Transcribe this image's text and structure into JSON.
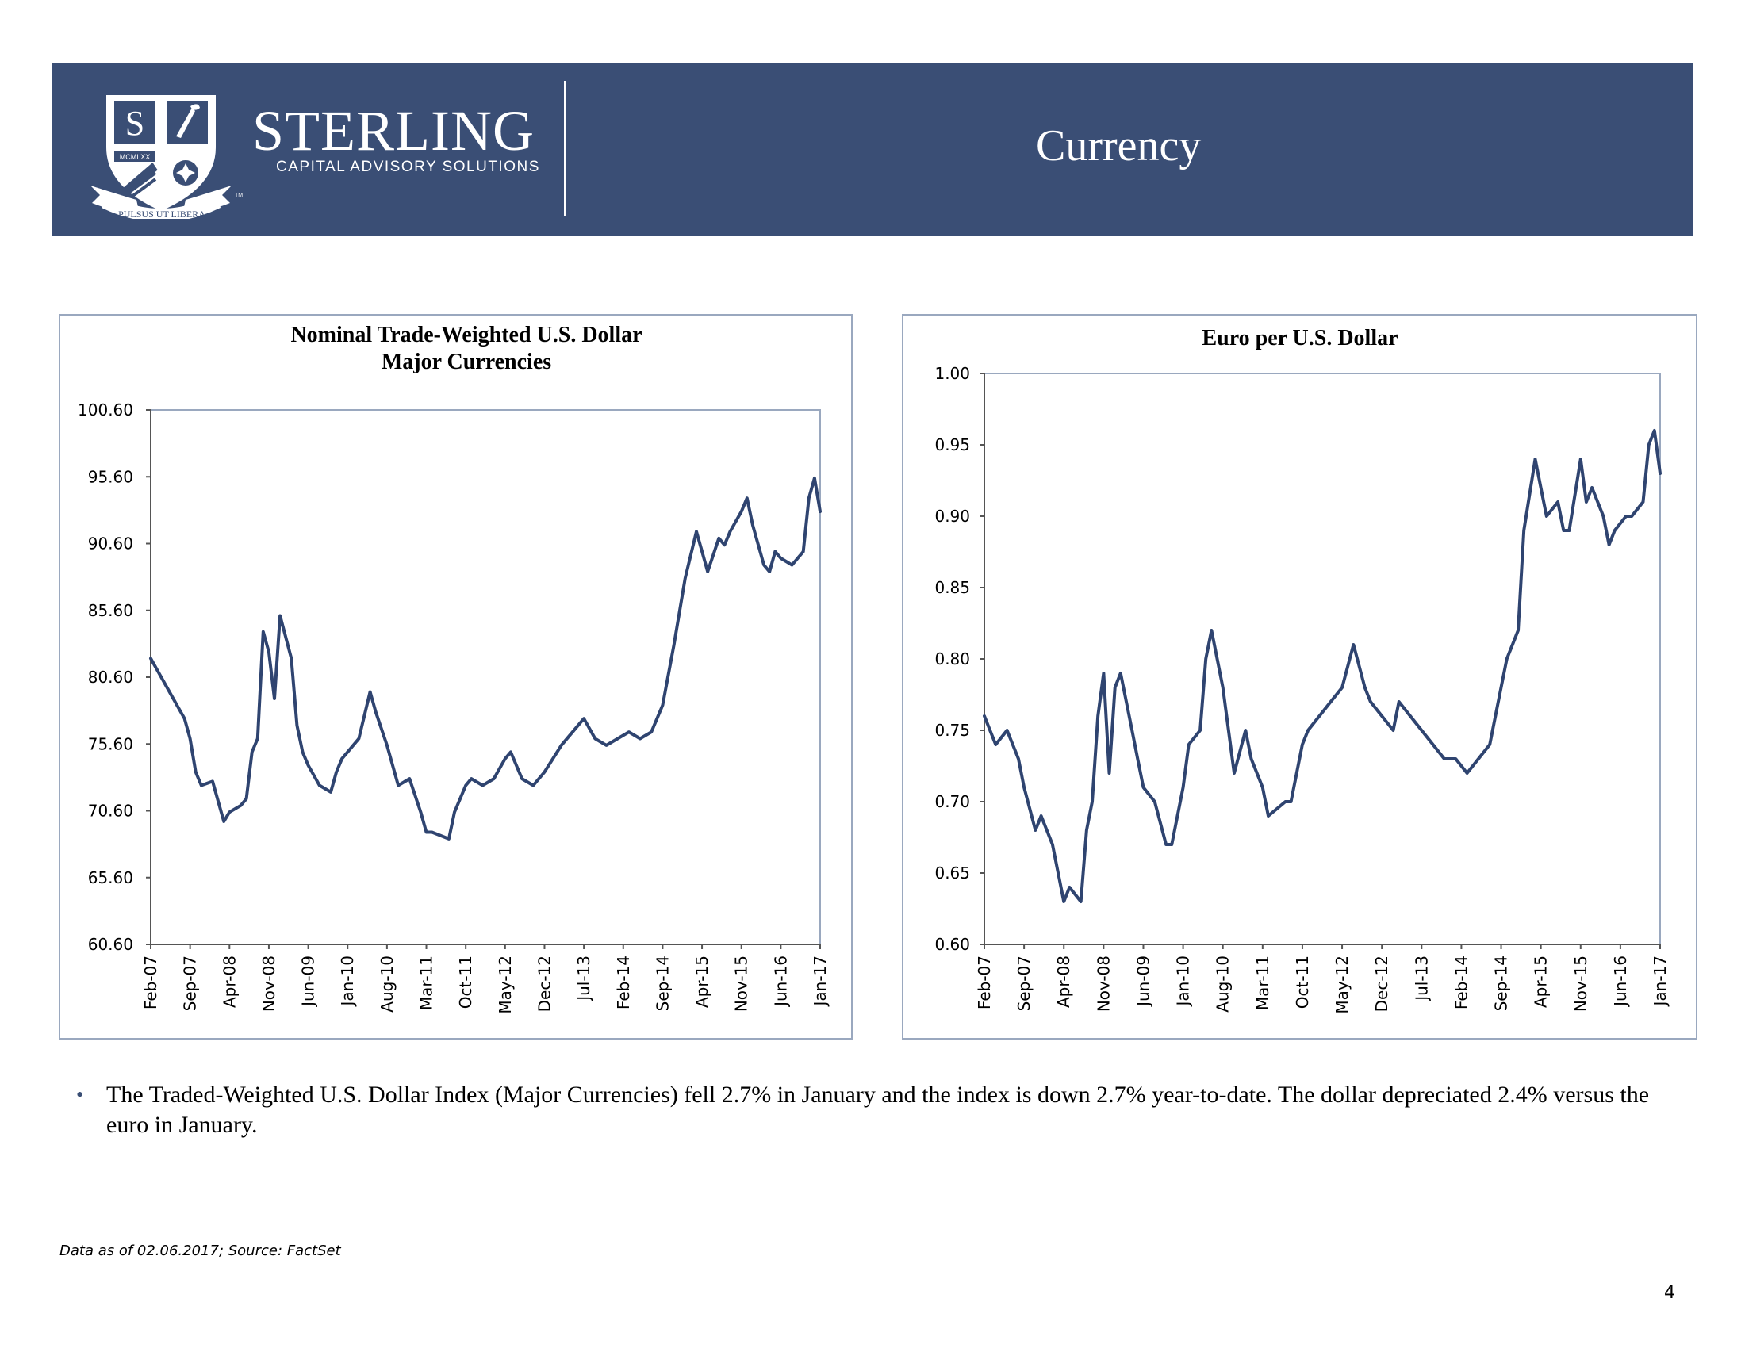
{
  "header": {
    "brand_name": "STERLING",
    "brand_sub": "CAPITAL ADVISORY SOLUTIONS",
    "shield_letter": "S",
    "shield_banner": "MCMLXX",
    "motto": "PULSUS UT LIBERA",
    "trademark": "TM",
    "title": "Currency",
    "colors": {
      "bar": "#3a4e75",
      "text": "#ffffff"
    }
  },
  "chart_data": [
    {
      "type": "line",
      "title": "Nominal Trade-Weighted U.S. Dollar",
      "subtitle": "Major Currencies",
      "ylim": [
        60.6,
        100.6
      ],
      "yticks": [
        "60.60",
        "65.60",
        "70.60",
        "75.60",
        "80.60",
        "85.60",
        "90.60",
        "95.60",
        "100.60"
      ],
      "xticks": [
        "Feb-07",
        "Sep-07",
        "Apr-08",
        "Nov-08",
        "Jun-09",
        "Jan-10",
        "Aug-10",
        "Mar-11",
        "Oct-11",
        "May-12",
        "Dec-12",
        "Jul-13",
        "Feb-14",
        "Sep-14",
        "Apr-15",
        "Nov-15",
        "Jun-16",
        "Jan-17"
      ],
      "series_color": "#2f4470",
      "series": [
        {
          "x": [
            "Feb-07",
            "Apr-07",
            "Jun-07",
            "Aug-07",
            "Sep-07",
            "Oct-07",
            "Nov-07",
            "Jan-08",
            "Mar-08",
            "Apr-08",
            "Jun-08",
            "Jul-08",
            "Aug-08",
            "Sep-08",
            "Oct-08",
            "Nov-08",
            "Dec-08",
            "Jan-09",
            "Mar-09",
            "Apr-09",
            "May-09",
            "Jun-09",
            "Aug-09",
            "Oct-09",
            "Nov-09",
            "Dec-09",
            "Jan-10",
            "Mar-10",
            "May-10",
            "Jun-10",
            "Aug-10",
            "Oct-10",
            "Dec-10",
            "Feb-11",
            "Mar-11",
            "Apr-11",
            "Jul-11",
            "Aug-11",
            "Oct-11",
            "Nov-11",
            "Jan-12",
            "Mar-12",
            "May-12",
            "Jun-12",
            "Aug-12",
            "Oct-12",
            "Dec-12",
            "Mar-13",
            "May-13",
            "Jul-13",
            "Sep-13",
            "Nov-13",
            "Jan-14",
            "Mar-14",
            "May-14",
            "Jul-14",
            "Sep-14",
            "Nov-14",
            "Jan-15",
            "Mar-15",
            "Apr-15",
            "May-15",
            "Jul-15",
            "Aug-15",
            "Sep-15",
            "Nov-15",
            "Dec-15",
            "Jan-16",
            "Mar-16",
            "Apr-16",
            "May-16",
            "Jun-16",
            "Aug-16",
            "Oct-16",
            "Nov-16",
            "Dec-16",
            "Jan-17"
          ],
          "values": [
            82.0,
            80.5,
            79.0,
            77.5,
            76.0,
            73.5,
            72.5,
            72.8,
            69.8,
            70.5,
            71.0,
            71.5,
            75.0,
            76.0,
            84.0,
            82.5,
            79.0,
            85.2,
            82.0,
            77.0,
            75.0,
            74.0,
            72.5,
            72.0,
            73.5,
            74.5,
            75.0,
            76.0,
            79.5,
            78.0,
            75.5,
            72.5,
            73.0,
            70.5,
            69.0,
            69.0,
            68.5,
            70.5,
            72.5,
            73.0,
            72.5,
            73.0,
            74.5,
            75.0,
            73.0,
            72.5,
            73.5,
            75.5,
            76.5,
            77.5,
            76.0,
            75.5,
            76.0,
            76.5,
            76.0,
            76.5,
            78.5,
            83.0,
            88.0,
            91.5,
            90.0,
            88.5,
            91.0,
            90.5,
            91.5,
            93.0,
            94.0,
            92.0,
            89.0,
            88.5,
            90.0,
            89.5,
            89.0,
            90.0,
            94.0,
            95.5,
            93.0
          ]
        }
      ]
    },
    {
      "type": "line",
      "title": "Euro per U.S. Dollar",
      "ylim": [
        0.6,
        1.0
      ],
      "yticks": [
        "0.60",
        "0.65",
        "0.70",
        "0.75",
        "0.80",
        "0.85",
        "0.90",
        "0.95",
        "1.00"
      ],
      "xticks": [
        "Feb-07",
        "Sep-07",
        "Apr-08",
        "Nov-08",
        "Jun-09",
        "Jan-10",
        "Aug-10",
        "Mar-11",
        "Oct-11",
        "May-12",
        "Dec-12",
        "Jul-13",
        "Feb-14",
        "Sep-14",
        "Apr-15",
        "Nov-15",
        "Jun-16",
        "Jan-17"
      ],
      "series_color": "#2f4470",
      "series": [
        {
          "x": [
            "Feb-07",
            "Apr-07",
            "Jun-07",
            "Aug-07",
            "Sep-07",
            "Nov-07",
            "Dec-07",
            "Feb-08",
            "Apr-08",
            "May-08",
            "Jul-08",
            "Aug-08",
            "Sep-08",
            "Oct-08",
            "Nov-08",
            "Dec-08",
            "Jan-09",
            "Feb-09",
            "Apr-09",
            "May-09",
            "Jun-09",
            "Aug-09",
            "Oct-09",
            "Nov-09",
            "Jan-10",
            "Feb-10",
            "Apr-10",
            "May-10",
            "Jun-10",
            "Aug-10",
            "Oct-10",
            "Dec-10",
            "Jan-11",
            "Mar-11",
            "Apr-11",
            "Jul-11",
            "Aug-11",
            "Oct-11",
            "Nov-11",
            "Jan-12",
            "Mar-12",
            "May-12",
            "Jul-12",
            "Sep-12",
            "Oct-12",
            "Dec-12",
            "Feb-13",
            "Mar-13",
            "May-13",
            "Jul-13",
            "Sep-13",
            "Nov-13",
            "Jan-14",
            "Mar-14",
            "May-14",
            "Jul-14",
            "Sep-14",
            "Oct-14",
            "Dec-14",
            "Jan-15",
            "Mar-15",
            "Apr-15",
            "May-15",
            "Jul-15",
            "Aug-15",
            "Sep-15",
            "Nov-15",
            "Dec-15",
            "Jan-16",
            "Mar-16",
            "Apr-16",
            "May-16",
            "Jul-16",
            "Aug-16",
            "Oct-16",
            "Nov-16",
            "Dec-16",
            "Jan-17"
          ],
          "values": [
            0.76,
            0.74,
            0.75,
            0.73,
            0.71,
            0.68,
            0.69,
            0.67,
            0.63,
            0.64,
            0.63,
            0.68,
            0.7,
            0.76,
            0.79,
            0.72,
            0.78,
            0.79,
            0.75,
            0.73,
            0.71,
            0.7,
            0.67,
            0.67,
            0.71,
            0.74,
            0.75,
            0.8,
            0.82,
            0.78,
            0.72,
            0.75,
            0.73,
            0.71,
            0.69,
            0.7,
            0.7,
            0.74,
            0.75,
            0.76,
            0.77,
            0.78,
            0.81,
            0.78,
            0.77,
            0.76,
            0.75,
            0.77,
            0.76,
            0.75,
            0.74,
            0.73,
            0.73,
            0.72,
            0.73,
            0.74,
            0.78,
            0.8,
            0.82,
            0.89,
            0.94,
            0.92,
            0.9,
            0.91,
            0.89,
            0.89,
            0.94,
            0.91,
            0.92,
            0.9,
            0.88,
            0.89,
            0.9,
            0.9,
            0.91,
            0.95,
            0.96,
            0.93
          ]
        }
      ]
    }
  ],
  "bullets": [
    "The Traded-Weighted U.S. Dollar Index (Major Currencies) fell 2.7% in January and the index is down 2.7% year-to-date. The dollar depreciated 2.4% versus the euro in January."
  ],
  "footnote": "Data as of 02.06.2017; Source: FactSet",
  "page_number": "4"
}
